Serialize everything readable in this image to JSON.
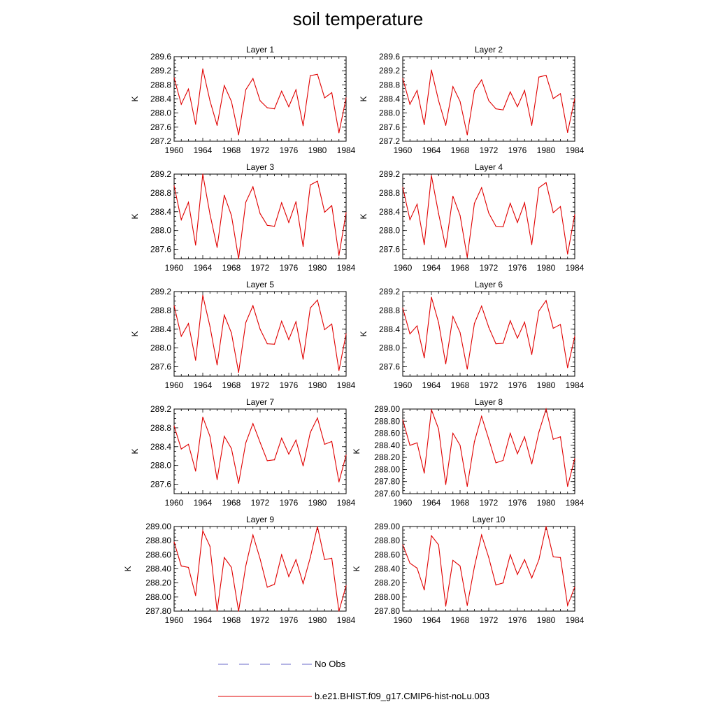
{
  "title": "soil temperature",
  "legend": {
    "obs_label": "No Obs",
    "obs_color": "#6a6ac8",
    "model_label": "b.e21.BHIST.f09_g17.CMIP6-hist-noLu.003",
    "model_color": "#e00000"
  },
  "chart_data": [
    {
      "type": "line",
      "title": "Layer 1",
      "ylabel": "K",
      "xlim": [
        1960,
        1984
      ],
      "ylim": [
        287.2,
        289.6
      ],
      "xticks": [
        "1960",
        "1964",
        "1968",
        "1972",
        "1976",
        "1980",
        "1984"
      ],
      "yticks": [
        "287.2",
        "287.6",
        "288.0",
        "288.4",
        "288.8",
        "289.2",
        "289.6"
      ],
      "x": [
        1960,
        1961,
        1962,
        1963,
        1964,
        1965,
        1966,
        1967,
        1968,
        1969,
        1970,
        1971,
        1972,
        1973,
        1974,
        1975,
        1976,
        1977,
        1978,
        1979,
        1980,
        1981,
        1982,
        1983,
        1984
      ],
      "series": [
        {
          "name": "b.e21.BHIST.f09_g17.CMIP6-hist-noLu.003",
          "values": [
            289.0,
            288.25,
            288.68,
            287.68,
            289.25,
            288.35,
            287.65,
            288.78,
            288.33,
            287.38,
            288.66,
            288.98,
            288.35,
            288.15,
            288.12,
            288.62,
            288.18,
            288.66,
            287.64,
            289.06,
            289.1,
            288.43,
            288.58,
            287.44,
            288.43
          ]
        }
      ]
    },
    {
      "type": "line",
      "title": "Layer 2",
      "ylabel": "K",
      "xlim": [
        1960,
        1984
      ],
      "ylim": [
        287.2,
        289.6
      ],
      "xticks": [
        "1960",
        "1964",
        "1968",
        "1972",
        "1976",
        "1980",
        "1984"
      ],
      "yticks": [
        "287.2",
        "287.6",
        "288.0",
        "288.4",
        "288.8",
        "289.2",
        "289.6"
      ],
      "x": [
        1960,
        1961,
        1962,
        1963,
        1964,
        1965,
        1966,
        1967,
        1968,
        1969,
        1970,
        1971,
        1972,
        1973,
        1974,
        1975,
        1976,
        1977,
        1978,
        1979,
        1980,
        1981,
        1982,
        1983,
        1984
      ],
      "series": [
        {
          "name": "b.e21.BHIST.f09_g17.CMIP6-hist-noLu.003",
          "values": [
            288.98,
            288.25,
            288.64,
            287.67,
            289.22,
            288.35,
            287.65,
            288.75,
            288.33,
            287.38,
            288.64,
            288.94,
            288.35,
            288.12,
            288.09,
            288.6,
            288.18,
            288.64,
            287.65,
            289.02,
            289.07,
            288.41,
            288.55,
            287.45,
            288.41
          ]
        }
      ]
    },
    {
      "type": "line",
      "title": "Layer 3",
      "ylabel": "K",
      "xlim": [
        1960,
        1984
      ],
      "ylim": [
        287.4,
        289.2
      ],
      "xticks": [
        "1960",
        "1964",
        "1968",
        "1972",
        "1976",
        "1980",
        "1984"
      ],
      "yticks": [
        "287.6",
        "288.0",
        "288.4",
        "288.8",
        "289.2"
      ],
      "x": [
        1960,
        1961,
        1962,
        1963,
        1964,
        1965,
        1966,
        1967,
        1968,
        1969,
        1970,
        1971,
        1972,
        1973,
        1974,
        1975,
        1976,
        1977,
        1978,
        1979,
        1980,
        1981,
        1982,
        1983,
        1984
      ],
      "series": [
        {
          "name": "b.e21.BHIST.f09_g17.CMIP6-hist-noLu.003",
          "values": [
            288.95,
            288.23,
            288.6,
            287.69,
            289.2,
            288.35,
            287.64,
            288.75,
            288.32,
            287.4,
            288.6,
            288.93,
            288.36,
            288.11,
            288.09,
            288.59,
            288.17,
            288.61,
            287.66,
            288.97,
            289.05,
            288.39,
            288.53,
            287.47,
            288.38
          ]
        }
      ]
    },
    {
      "type": "line",
      "title": "Layer 4",
      "ylabel": "K",
      "xlim": [
        1960,
        1984
      ],
      "ylim": [
        287.4,
        289.2
      ],
      "xticks": [
        "1960",
        "1964",
        "1968",
        "1972",
        "1976",
        "1980",
        "1984"
      ],
      "yticks": [
        "287.6",
        "288.0",
        "288.4",
        "288.8",
        "289.2"
      ],
      "x": [
        1960,
        1961,
        1962,
        1963,
        1964,
        1965,
        1966,
        1967,
        1968,
        1969,
        1970,
        1971,
        1972,
        1973,
        1974,
        1975,
        1976,
        1977,
        1978,
        1979,
        1980,
        1981,
        1982,
        1983,
        1984
      ],
      "series": [
        {
          "name": "b.e21.BHIST.f09_g17.CMIP6-hist-noLu.003",
          "values": [
            288.92,
            288.23,
            288.56,
            287.7,
            289.17,
            288.36,
            287.64,
            288.73,
            288.32,
            287.43,
            288.58,
            288.91,
            288.37,
            288.09,
            288.08,
            288.58,
            288.17,
            288.59,
            287.7,
            288.91,
            289.02,
            288.38,
            288.51,
            287.5,
            288.34
          ]
        }
      ]
    },
    {
      "type": "line",
      "title": "Layer 5",
      "ylabel": "K",
      "xlim": [
        1960,
        1984
      ],
      "ylim": [
        287.4,
        289.2
      ],
      "xticks": [
        "1960",
        "1964",
        "1968",
        "1972",
        "1976",
        "1980",
        "1984"
      ],
      "yticks": [
        "287.6",
        "288.0",
        "288.4",
        "288.8",
        "289.2"
      ],
      "x": [
        1960,
        1961,
        1962,
        1963,
        1964,
        1965,
        1966,
        1967,
        1968,
        1969,
        1970,
        1971,
        1972,
        1973,
        1974,
        1975,
        1976,
        1977,
        1978,
        1979,
        1980,
        1981,
        1982,
        1983,
        1984
      ],
      "series": [
        {
          "name": "b.e21.BHIST.f09_g17.CMIP6-hist-noLu.003",
          "values": [
            288.9,
            288.25,
            288.52,
            287.74,
            289.12,
            288.46,
            287.64,
            288.7,
            288.32,
            287.48,
            288.54,
            288.9,
            288.4,
            288.09,
            288.08,
            288.57,
            288.18,
            288.56,
            287.76,
            288.85,
            289.02,
            288.39,
            288.51,
            287.52,
            288.3
          ]
        }
      ]
    },
    {
      "type": "line",
      "title": "Layer 6",
      "ylabel": "K",
      "xlim": [
        1960,
        1984
      ],
      "ylim": [
        287.4,
        289.2
      ],
      "xticks": [
        "1960",
        "1964",
        "1968",
        "1972",
        "1976",
        "1980",
        "1984"
      ],
      "yticks": [
        "287.6",
        "288.0",
        "288.4",
        "288.8",
        "289.2"
      ],
      "x": [
        1960,
        1961,
        1962,
        1963,
        1964,
        1965,
        1966,
        1967,
        1968,
        1969,
        1970,
        1971,
        1972,
        1973,
        1974,
        1975,
        1976,
        1977,
        1978,
        1979,
        1980,
        1981,
        1982,
        1983,
        1984
      ],
      "series": [
        {
          "name": "b.e21.BHIST.f09_g17.CMIP6-hist-noLu.003",
          "values": [
            288.85,
            288.3,
            288.47,
            287.79,
            289.08,
            288.54,
            287.66,
            288.67,
            288.33,
            287.55,
            288.52,
            288.89,
            288.44,
            288.09,
            288.1,
            288.58,
            288.21,
            288.55,
            287.86,
            288.79,
            289.01,
            288.42,
            288.5,
            287.58,
            288.25
          ]
        }
      ]
    },
    {
      "type": "line",
      "title": "Layer 7",
      "ylabel": "K",
      "xlim": [
        1960,
        1984
      ],
      "ylim": [
        287.4,
        289.2
      ],
      "xticks": [
        "1960",
        "1964",
        "1968",
        "1972",
        "1976",
        "1980",
        "1984"
      ],
      "yticks": [
        "287.6",
        "288.0",
        "288.4",
        "288.8",
        "289.2"
      ],
      "x": [
        1960,
        1961,
        1962,
        1963,
        1964,
        1965,
        1966,
        1967,
        1968,
        1969,
        1970,
        1971,
        1972,
        1973,
        1974,
        1975,
        1976,
        1977,
        1978,
        1979,
        1980,
        1981,
        1982,
        1983,
        1984
      ],
      "series": [
        {
          "name": "b.e21.BHIST.f09_g17.CMIP6-hist-noLu.003",
          "values": [
            288.84,
            288.35,
            288.45,
            287.88,
            289.03,
            288.62,
            287.7,
            288.62,
            288.36,
            287.62,
            288.48,
            288.89,
            288.49,
            288.1,
            288.12,
            288.58,
            288.24,
            288.54,
            287.99,
            288.7,
            289.01,
            288.45,
            288.51,
            287.65,
            288.22
          ]
        }
      ]
    },
    {
      "type": "line",
      "title": "Layer 8",
      "ylabel": "K",
      "xlim": [
        1960,
        1984
      ],
      "ylim": [
        287.6,
        289.0
      ],
      "xticks": [
        "1960",
        "1964",
        "1968",
        "1972",
        "1976",
        "1980",
        "1984"
      ],
      "yticks": [
        "287.60",
        "287.80",
        "288.00",
        "288.20",
        "288.40",
        "288.60",
        "288.80",
        "289.00"
      ],
      "x": [
        1960,
        1961,
        1962,
        1963,
        1964,
        1965,
        1966,
        1967,
        1968,
        1969,
        1970,
        1971,
        1972,
        1973,
        1974,
        1975,
        1976,
        1977,
        1978,
        1979,
        1980,
        1981,
        1982,
        1983,
        1984
      ],
      "series": [
        {
          "name": "b.e21.BHIST.f09_g17.CMIP6-hist-noLu.003",
          "values": [
            288.82,
            288.4,
            288.44,
            287.94,
            288.99,
            288.67,
            287.75,
            288.6,
            288.4,
            287.72,
            288.46,
            288.88,
            288.5,
            288.11,
            288.15,
            288.6,
            288.26,
            288.54,
            288.09,
            288.62,
            289.0,
            288.5,
            288.54,
            287.72,
            288.18
          ]
        }
      ]
    },
    {
      "type": "line",
      "title": "Layer 9",
      "ylabel": "K",
      "xlim": [
        1960,
        1984
      ],
      "ylim": [
        287.8,
        289.0
      ],
      "xticks": [
        "1960",
        "1964",
        "1968",
        "1972",
        "1976",
        "1980",
        "1984"
      ],
      "yticks": [
        "287.80",
        "288.00",
        "288.20",
        "288.40",
        "288.60",
        "288.80",
        "289.00"
      ],
      "x": [
        1960,
        1961,
        1962,
        1963,
        1964,
        1965,
        1966,
        1967,
        1968,
        1969,
        1970,
        1971,
        1972,
        1973,
        1974,
        1975,
        1976,
        1977,
        1978,
        1979,
        1980,
        1981,
        1982,
        1983,
        1984
      ],
      "series": [
        {
          "name": "b.e21.BHIST.f09_g17.CMIP6-hist-noLu.003",
          "values": [
            288.78,
            288.44,
            288.42,
            288.02,
            288.94,
            288.72,
            287.8,
            288.56,
            288.42,
            287.8,
            288.44,
            288.88,
            288.54,
            288.14,
            288.18,
            288.6,
            288.29,
            288.53,
            288.19,
            288.56,
            289.0,
            288.53,
            288.55,
            287.8,
            288.16
          ]
        }
      ]
    },
    {
      "type": "line",
      "title": "Layer 10",
      "ylabel": "K",
      "xlim": [
        1960,
        1984
      ],
      "ylim": [
        287.8,
        289.0
      ],
      "xticks": [
        "1960",
        "1964",
        "1968",
        "1972",
        "1976",
        "1980",
        "1984"
      ],
      "yticks": [
        "287.80",
        "288.00",
        "288.20",
        "288.40",
        "288.60",
        "288.80",
        "289.00"
      ],
      "x": [
        1960,
        1961,
        1962,
        1963,
        1964,
        1965,
        1966,
        1967,
        1968,
        1969,
        1970,
        1971,
        1972,
        1973,
        1974,
        1975,
        1976,
        1977,
        1978,
        1979,
        1980,
        1981,
        1982,
        1983,
        1984
      ],
      "series": [
        {
          "name": "b.e21.BHIST.f09_g17.CMIP6-hist-noLu.003",
          "values": [
            288.74,
            288.48,
            288.41,
            288.1,
            288.87,
            288.74,
            287.87,
            288.52,
            288.44,
            287.88,
            288.43,
            288.88,
            288.56,
            288.17,
            288.2,
            288.6,
            288.32,
            288.53,
            288.27,
            288.53,
            289.0,
            288.57,
            288.56,
            287.88,
            288.14
          ]
        }
      ]
    }
  ]
}
